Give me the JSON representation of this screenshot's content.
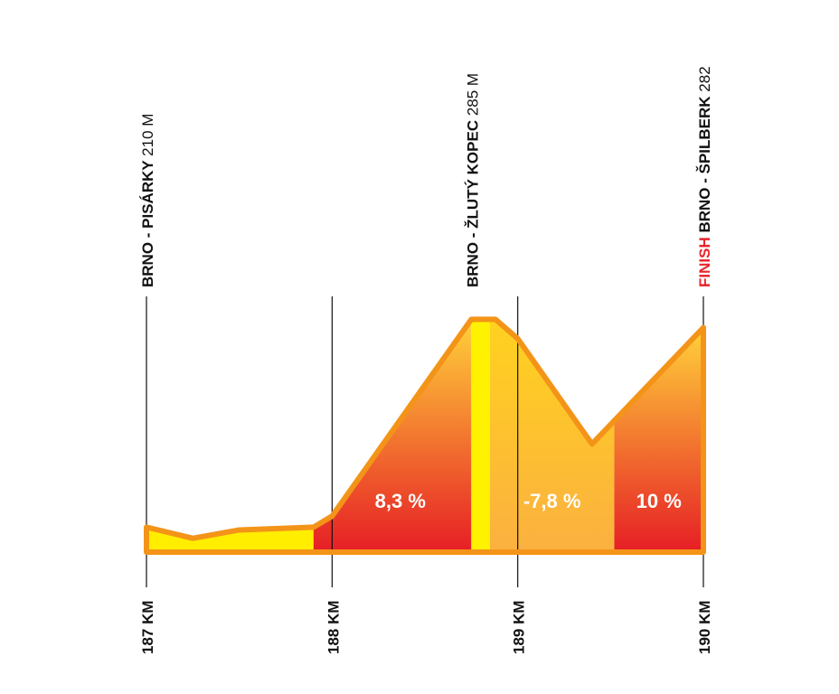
{
  "chart_data": {
    "type": "area",
    "title": "",
    "xlabel": "",
    "ylabel": "",
    "x_ticks": [
      {
        "km": 187,
        "label": "187 KM"
      },
      {
        "km": 188,
        "label": "188 KM"
      },
      {
        "km": 189,
        "label": "189 KM"
      },
      {
        "km": 190,
        "label": "190 KM"
      }
    ],
    "xlim": [
      187,
      190
    ],
    "ylim": [
      201,
      290
    ],
    "profile": [
      {
        "km": 187.0,
        "elev": 210
      },
      {
        "km": 187.25,
        "elev": 206
      },
      {
        "km": 187.5,
        "elev": 209
      },
      {
        "km": 187.9,
        "elev": 210
      },
      {
        "km": 188.0,
        "elev": 214
      },
      {
        "km": 188.75,
        "elev": 285
      },
      {
        "km": 188.88,
        "elev": 285
      },
      {
        "km": 189.0,
        "elev": 278
      },
      {
        "km": 189.4,
        "elev": 240
      },
      {
        "km": 190.0,
        "elev": 282
      }
    ],
    "segments": [
      {
        "from": 187.0,
        "to": 187.9,
        "style": "flat",
        "label": ""
      },
      {
        "from": 187.9,
        "to": 188.75,
        "style": "climb",
        "label": "8,3 %"
      },
      {
        "from": 188.75,
        "to": 188.85,
        "style": "summit",
        "label": ""
      },
      {
        "from": 188.85,
        "to": 189.52,
        "style": "descent",
        "label": "-7,8 %"
      },
      {
        "from": 189.52,
        "to": 190.0,
        "style": "climb",
        "label": "10 %"
      }
    ],
    "points": [
      {
        "km": 187.0,
        "prefix": "",
        "name": "BRNO - PISÁRKY",
        "elevation": "210 M"
      },
      {
        "km": 188.75,
        "prefix": "",
        "name": "BRNO - ŽLUTÝ KOPEC",
        "elevation": "285 M"
      },
      {
        "km": 190.0,
        "prefix": "FINISH",
        "name": "BRNO - ŠPILBERK",
        "elevation": "282"
      }
    ],
    "colors": {
      "outline": "#f39419",
      "flat": "#ffee00",
      "summit": "#fff200",
      "climb_top": "#ffd23a",
      "climb_bottom": "#e61e25",
      "descent_top": "#ffd21f",
      "descent_bottom": "#fbb040",
      "finish_text": "#e8232a",
      "axis": "#111111"
    }
  }
}
